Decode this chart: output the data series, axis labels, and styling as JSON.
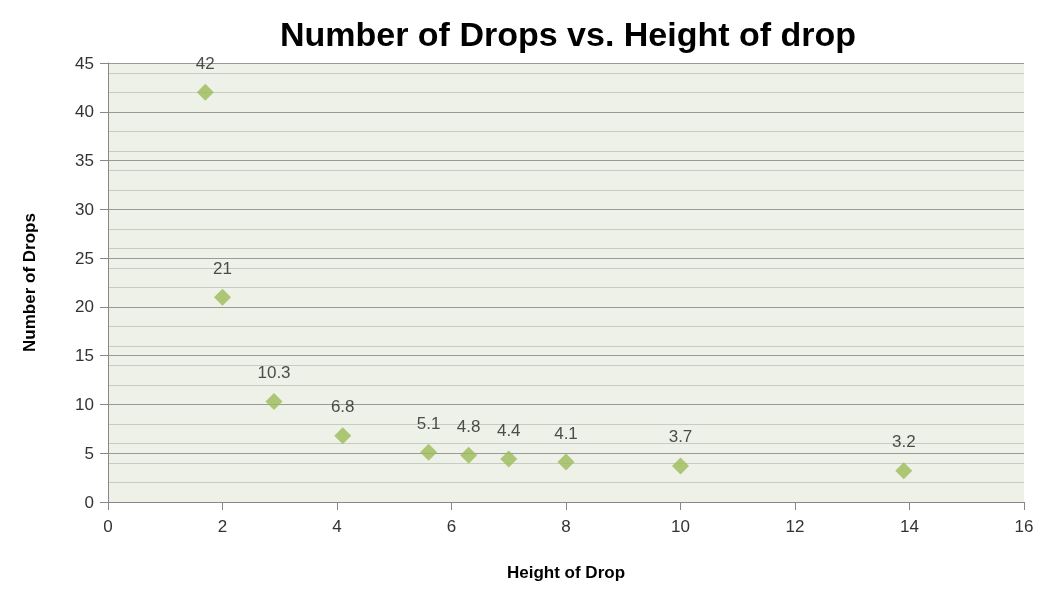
{
  "chart_data": {
    "type": "scatter",
    "title": "Number of Drops vs. Height of drop",
    "xlabel": "Height of Drop",
    "ylabel": "Number of Drops",
    "x": [
      1.7,
      2,
      2.9,
      4.1,
      5.6,
      6.3,
      7,
      8,
      10,
      13.9
    ],
    "values": [
      42,
      21,
      10.3,
      6.8,
      5.1,
      4.8,
      4.4,
      4.1,
      3.7,
      3.2
    ],
    "color": "#9bbb59",
    "marker": "diamond",
    "data_labels": true,
    "grid": "y",
    "xlim": [
      0,
      16
    ],
    "xticks": [
      0,
      2,
      4,
      6,
      8,
      10,
      12,
      14,
      16
    ],
    "ylim": [
      0,
      45
    ],
    "yticks": [
      0,
      5,
      10,
      15,
      20,
      25,
      30,
      35,
      40,
      45
    ]
  }
}
